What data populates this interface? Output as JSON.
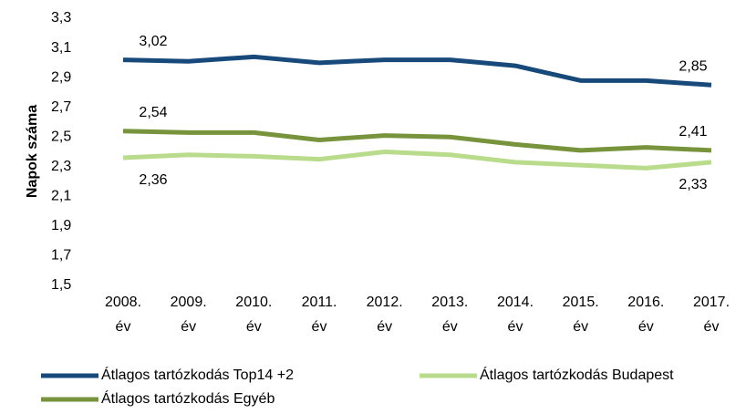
{
  "chart_data": {
    "type": "line",
    "y_label": "Napok száma",
    "categories": [
      "2008. év",
      "2009. év",
      "2010. év",
      "2011. év",
      "2012. év",
      "2013. év",
      "2014. év",
      "2015. év",
      "2016. év",
      "2017. év"
    ],
    "series": [
      {
        "name": "Átlagos tartózkodás Top14 +2",
        "color": "#17497a",
        "values": [
          3.02,
          3.01,
          3.04,
          3.0,
          3.02,
          3.02,
          2.98,
          2.88,
          2.88,
          2.85
        ],
        "value_labels": [
          "3,02",
          null,
          null,
          null,
          null,
          null,
          null,
          null,
          null,
          "2,85"
        ]
      },
      {
        "name": "Átlagos tartózkodás Budapest",
        "color": "#b8dc8c",
        "values": [
          2.36,
          2.38,
          2.37,
          2.35,
          2.4,
          2.38,
          2.33,
          2.31,
          2.29,
          2.33
        ],
        "value_labels": [
          "2,36",
          null,
          null,
          null,
          null,
          null,
          null,
          null,
          null,
          "2,33"
        ]
      },
      {
        "name": "Átlagos tartózkodás Egyéb",
        "color": "#77933c",
        "values": [
          2.54,
          2.53,
          2.53,
          2.48,
          2.51,
          2.5,
          2.45,
          2.41,
          2.43,
          2.41
        ],
        "value_labels": [
          "2,54",
          null,
          null,
          null,
          null,
          null,
          null,
          null,
          null,
          "2,41"
        ]
      }
    ],
    "ylim": [
      1.5,
      3.3
    ],
    "yticks": [
      {
        "value": 1.5,
        "label": "1,5"
      },
      {
        "value": 1.7,
        "label": "1,7"
      },
      {
        "value": 1.9,
        "label": "1,9"
      },
      {
        "value": 2.1,
        "label": "2,1"
      },
      {
        "value": 2.3,
        "label": "2,3"
      },
      {
        "value": 2.5,
        "label": "2,5"
      },
      {
        "value": 2.7,
        "label": "2,7"
      },
      {
        "value": 2.9,
        "label": "2,9"
      },
      {
        "value": 3.1,
        "label": "3,1"
      },
      {
        "value": 3.3,
        "label": "3,3"
      }
    ],
    "grid": false
  }
}
